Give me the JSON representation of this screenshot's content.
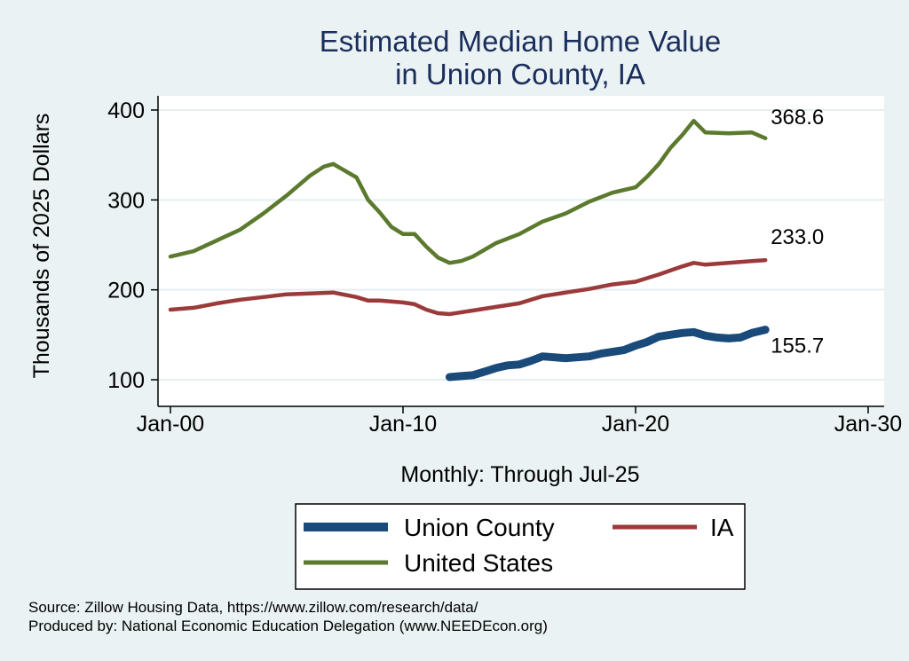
{
  "chart_data": {
    "type": "line",
    "title": [
      "Estimated Median Home Value",
      "in Union County, IA"
    ],
    "xlabel": "Monthly: Through Jul-25",
    "ylabel": "Thousands of 2025 Dollars",
    "xlim": [
      2000,
      2030
    ],
    "ylim": [
      100,
      400
    ],
    "x_ticks": [
      {
        "value": 2000,
        "label": "Jan-00"
      },
      {
        "value": 2010,
        "label": "Jan-10"
      },
      {
        "value": 2020,
        "label": "Jan-20"
      },
      {
        "value": 2030,
        "label": "Jan-30"
      }
    ],
    "y_ticks": [
      {
        "value": 100,
        "label": "100"
      },
      {
        "value": 200,
        "label": "200"
      },
      {
        "value": 300,
        "label": "300"
      },
      {
        "value": 400,
        "label": "400"
      }
    ],
    "grid": true,
    "legend_position": "bottom",
    "series": [
      {
        "name": "United States",
        "color": "#5b7a2e",
        "end_label": "368.6",
        "points": [
          [
            2000.0,
            237
          ],
          [
            2001.0,
            243
          ],
          [
            2002.0,
            255
          ],
          [
            2003.0,
            267
          ],
          [
            2004.0,
            285
          ],
          [
            2005.0,
            305
          ],
          [
            2006.0,
            327
          ],
          [
            2006.6,
            337
          ],
          [
            2007.0,
            340
          ],
          [
            2008.0,
            325
          ],
          [
            2008.5,
            300
          ],
          [
            2009.0,
            286
          ],
          [
            2009.5,
            270
          ],
          [
            2010.0,
            262
          ],
          [
            2010.5,
            262
          ],
          [
            2011.0,
            248
          ],
          [
            2011.5,
            236
          ],
          [
            2012.0,
            230
          ],
          [
            2012.5,
            232
          ],
          [
            2013.0,
            237
          ],
          [
            2014.0,
            252
          ],
          [
            2015.0,
            262
          ],
          [
            2016.0,
            276
          ],
          [
            2017.0,
            285
          ],
          [
            2018.0,
            298
          ],
          [
            2019.0,
            308
          ],
          [
            2020.0,
            314
          ],
          [
            2020.5,
            326
          ],
          [
            2021.0,
            340
          ],
          [
            2021.5,
            358
          ],
          [
            2022.0,
            372
          ],
          [
            2022.5,
            388
          ],
          [
            2023.0,
            375
          ],
          [
            2024.0,
            374
          ],
          [
            2025.0,
            375
          ],
          [
            2025.58,
            368.6
          ]
        ]
      },
      {
        "name": "IA",
        "color": "#9b3a3a",
        "end_label": "233.0",
        "points": [
          [
            2000.0,
            178
          ],
          [
            2001.0,
            180
          ],
          [
            2002.0,
            185
          ],
          [
            2003.0,
            189
          ],
          [
            2004.0,
            192
          ],
          [
            2005.0,
            195
          ],
          [
            2006.0,
            196
          ],
          [
            2007.0,
            197
          ],
          [
            2008.0,
            192
          ],
          [
            2008.5,
            188
          ],
          [
            2009.0,
            188
          ],
          [
            2010.0,
            186
          ],
          [
            2010.5,
            184
          ],
          [
            2011.0,
            178
          ],
          [
            2011.5,
            174
          ],
          [
            2012.0,
            173
          ],
          [
            2013.0,
            177
          ],
          [
            2014.0,
            181
          ],
          [
            2015.0,
            185
          ],
          [
            2016.0,
            193
          ],
          [
            2017.0,
            197
          ],
          [
            2018.0,
            201
          ],
          [
            2019.0,
            206
          ],
          [
            2020.0,
            209
          ],
          [
            2021.0,
            217
          ],
          [
            2022.0,
            226
          ],
          [
            2022.5,
            230
          ],
          [
            2023.0,
            228
          ],
          [
            2024.0,
            230
          ],
          [
            2025.0,
            232
          ],
          [
            2025.58,
            233.0
          ]
        ]
      },
      {
        "name": "Union County",
        "color": "#1a4a7a",
        "end_label": "155.7",
        "points": [
          [
            2012.0,
            103
          ],
          [
            2012.5,
            104
          ],
          [
            2013.0,
            105
          ],
          [
            2013.5,
            109
          ],
          [
            2014.0,
            113
          ],
          [
            2014.5,
            116
          ],
          [
            2015.0,
            117
          ],
          [
            2015.5,
            121
          ],
          [
            2016.0,
            126
          ],
          [
            2016.5,
            125
          ],
          [
            2017.0,
            124
          ],
          [
            2017.5,
            125
          ],
          [
            2018.0,
            126
          ],
          [
            2018.5,
            129
          ],
          [
            2019.0,
            131
          ],
          [
            2019.5,
            133
          ],
          [
            2020.0,
            138
          ],
          [
            2020.5,
            142
          ],
          [
            2021.0,
            148
          ],
          [
            2021.5,
            150
          ],
          [
            2022.0,
            152
          ],
          [
            2022.5,
            153
          ],
          [
            2023.0,
            149
          ],
          [
            2023.5,
            147
          ],
          [
            2024.0,
            146
          ],
          [
            2024.5,
            147
          ],
          [
            2025.0,
            152
          ],
          [
            2025.58,
            155.7
          ]
        ]
      }
    ],
    "legend_items": [
      {
        "name": "Union County",
        "color": "#1a4a7a"
      },
      {
        "name": "IA",
        "color": "#9b3a3a"
      },
      {
        "name": "United States",
        "color": "#5b7a2e"
      }
    ]
  },
  "footer": {
    "source": "Source: Zillow Housing Data, https://www.zillow.com/research/data/",
    "produced": "Produced by: National Economic Education Delegation (www.NEEDEcon.org)"
  }
}
